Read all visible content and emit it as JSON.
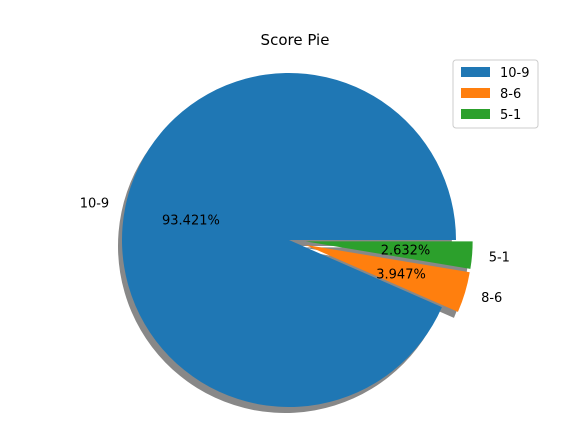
{
  "chart_data": {
    "type": "pie",
    "title": "Score Pie",
    "slices": [
      {
        "label": "10-9",
        "value": 93.421,
        "pct_label": "93.421%",
        "color": "#1f77b4",
        "exploded": false
      },
      {
        "label": "8-6",
        "value": 3.947,
        "pct_label": "3.947%",
        "color": "#ff7f0e",
        "exploded": true
      },
      {
        "label": "5-1",
        "value": 2.632,
        "pct_label": "2.632%",
        "color": "#2ca02c",
        "exploded": true
      }
    ],
    "shadow": true,
    "start_angle": 0,
    "direction": "counterclockwise",
    "legend": {
      "location": "top-right",
      "entries": [
        "10-9",
        "8-6",
        "5-1"
      ]
    }
  }
}
